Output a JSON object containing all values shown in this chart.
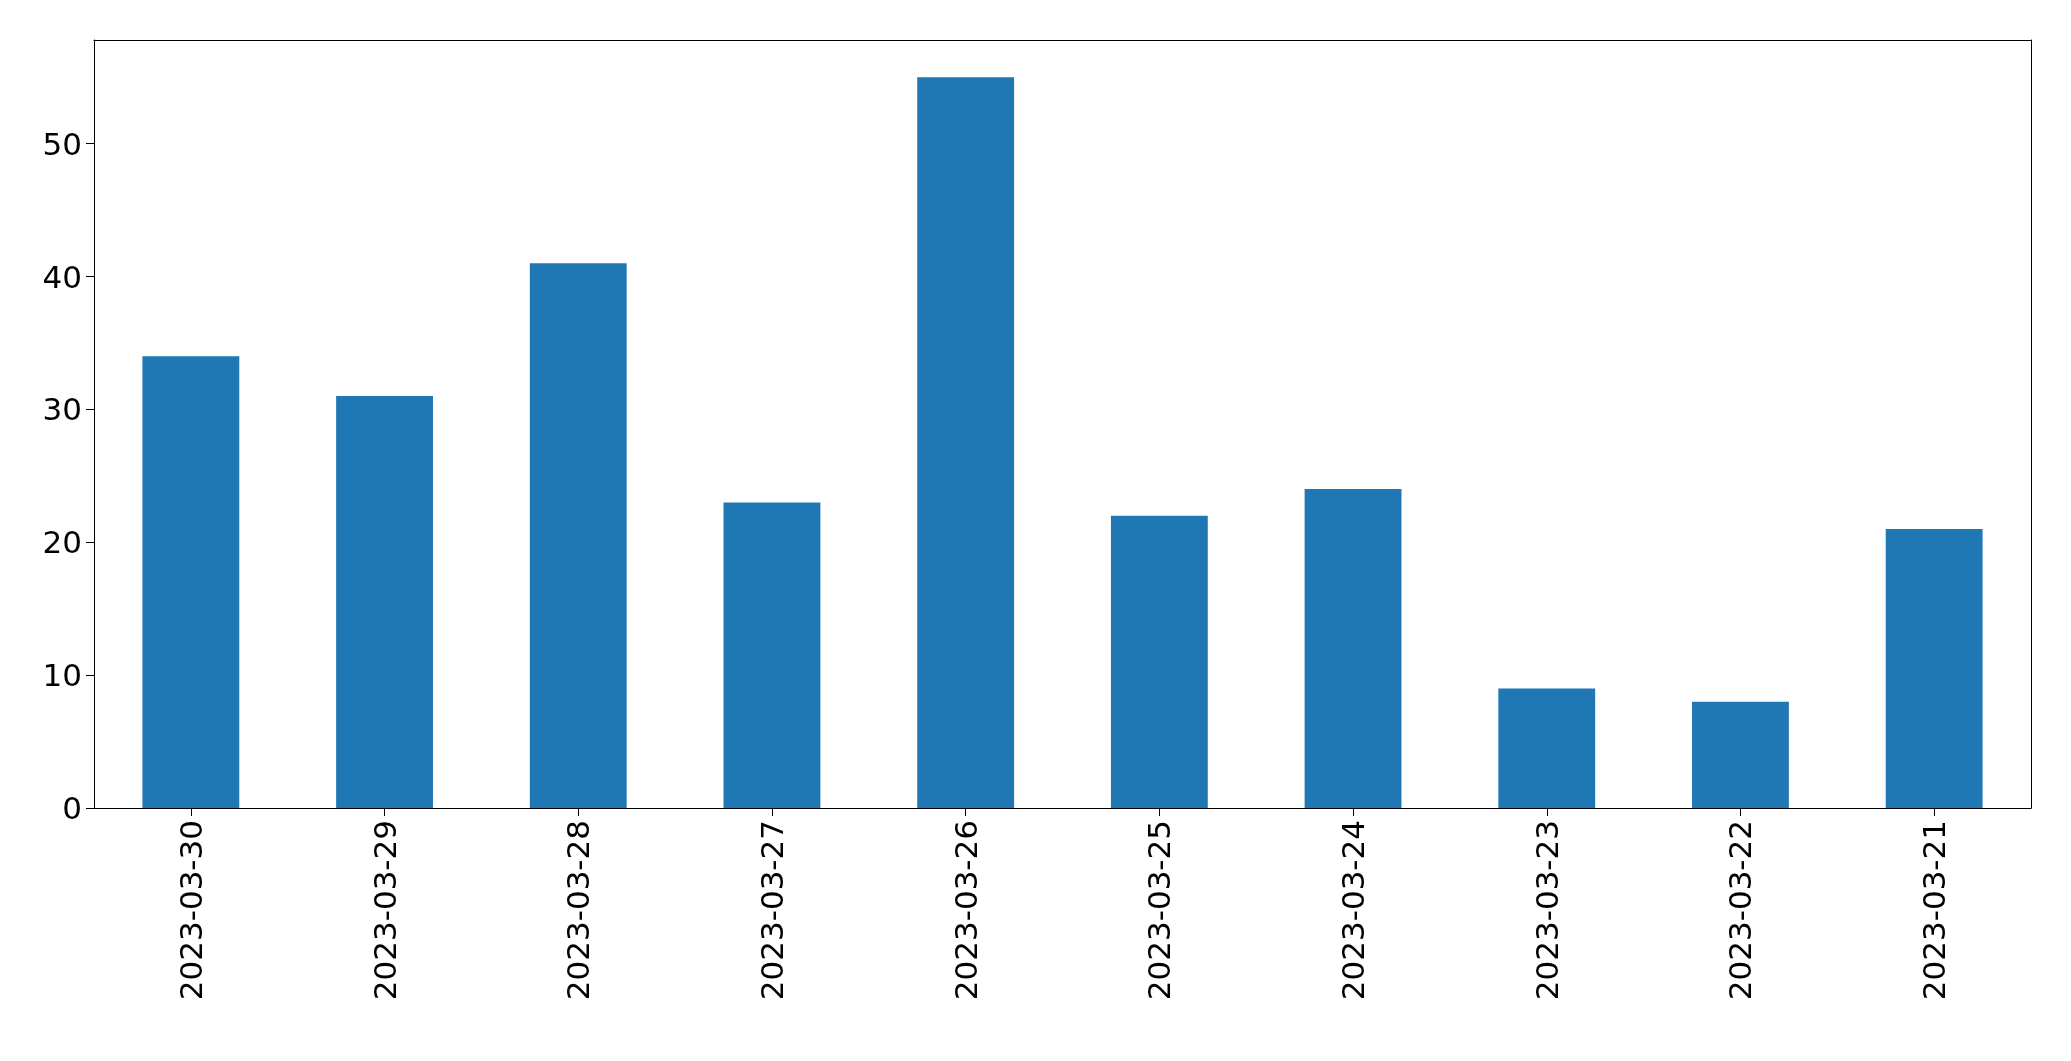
{
  "chart_data": {
    "type": "bar",
    "categories": [
      "2023-03-30",
      "2023-03-29",
      "2023-03-28",
      "2023-03-27",
      "2023-03-26",
      "2023-03-25",
      "2023-03-24",
      "2023-03-23",
      "2023-03-22",
      "2023-03-21"
    ],
    "values": [
      34,
      31,
      41,
      23,
      55,
      22,
      24,
      9,
      8,
      21
    ],
    "color": "#1f77b4",
    "ylim": [
      0,
      57.8
    ],
    "yticks": [
      0,
      10,
      20,
      30,
      40,
      50
    ],
    "grid": false
  }
}
